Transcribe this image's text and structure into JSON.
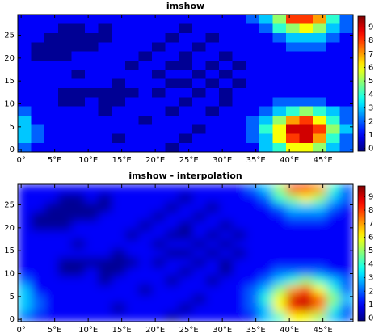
{
  "chart_data": [
    {
      "type": "heatmap",
      "title": "imshow",
      "interpolation": "nearest",
      "xlim": [
        -0.5,
        49.5
      ],
      "ylim": [
        -0.5,
        29.5
      ],
      "xticks": [
        {
          "value": 0,
          "label": "0°"
        },
        {
          "value": 5,
          "label": "5°E"
        },
        {
          "value": 10,
          "label": "10°E"
        },
        {
          "value": 15,
          "label": "15°E"
        },
        {
          "value": 20,
          "label": "20°E"
        },
        {
          "value": 25,
          "label": "25°E"
        },
        {
          "value": 30,
          "label": "30°E"
        },
        {
          "value": 35,
          "label": "35°E"
        },
        {
          "value": 40,
          "label": "40°E"
        },
        {
          "value": 45,
          "label": "45°E"
        }
      ],
      "yticks": [
        0,
        5,
        10,
        15,
        20,
        25
      ],
      "colormap": "jet",
      "clim": [
        -0.2,
        9.8
      ],
      "cticks": [
        0,
        1,
        2,
        3,
        4,
        5,
        6,
        7,
        8,
        9
      ],
      "z": [
        [
          2,
          1,
          1,
          1,
          1,
          1,
          1,
          1,
          1,
          1,
          1,
          0,
          1,
          1,
          1,
          1,
          1,
          1,
          3,
          4,
          6,
          6,
          5,
          3,
          2
        ],
        [
          3,
          2,
          1,
          1,
          1,
          1,
          1,
          0,
          1,
          1,
          1,
          1,
          0,
          1,
          1,
          1,
          1,
          2,
          3,
          6,
          8,
          9,
          7,
          4,
          2
        ],
        [
          3,
          2,
          1,
          1,
          1,
          1,
          1,
          1,
          1,
          1,
          1,
          1,
          1,
          0,
          1,
          1,
          1,
          2,
          4,
          6,
          9,
          9,
          8,
          5,
          3
        ],
        [
          3,
          1,
          1,
          1,
          1,
          1,
          1,
          1,
          1,
          0,
          1,
          1,
          1,
          1,
          1,
          1,
          1,
          2,
          3,
          5,
          7,
          8,
          6,
          4,
          2
        ],
        [
          2,
          1,
          1,
          1,
          1,
          1,
          0,
          1,
          1,
          1,
          1,
          0,
          1,
          1,
          0,
          1,
          1,
          1,
          2,
          3,
          4,
          5,
          4,
          3,
          2
        ],
        [
          1,
          1,
          1,
          0,
          0,
          1,
          0,
          0,
          1,
          1,
          1,
          1,
          0,
          1,
          1,
          0,
          1,
          1,
          1,
          2,
          2,
          2,
          2,
          1,
          1
        ],
        [
          1,
          1,
          1,
          0,
          0,
          0,
          0,
          0,
          0,
          1,
          0,
          1,
          1,
          0,
          1,
          0,
          1,
          1,
          1,
          1,
          1,
          1,
          1,
          1,
          1
        ],
        [
          1,
          1,
          1,
          1,
          1,
          1,
          1,
          0,
          1,
          1,
          1,
          0,
          0,
          1,
          0,
          1,
          0,
          1,
          1,
          1,
          1,
          1,
          1,
          1,
          1
        ],
        [
          1,
          1,
          1,
          1,
          0,
          1,
          1,
          1,
          1,
          1,
          0,
          1,
          1,
          0,
          1,
          0,
          1,
          1,
          1,
          1,
          1,
          1,
          1,
          1,
          1
        ],
        [
          1,
          1,
          1,
          1,
          1,
          1,
          1,
          1,
          0,
          1,
          1,
          0,
          0,
          1,
          0,
          1,
          0,
          1,
          1,
          1,
          1,
          1,
          1,
          1,
          1
        ],
        [
          1,
          0,
          0,
          0,
          1,
          1,
          1,
          1,
          1,
          0,
          1,
          1,
          0,
          1,
          1,
          0,
          1,
          1,
          1,
          1,
          1,
          1,
          1,
          1,
          1
        ],
        [
          1,
          0,
          0,
          0,
          0,
          0,
          1,
          1,
          1,
          1,
          0,
          1,
          1,
          0,
          1,
          1,
          1,
          1,
          1,
          1,
          2,
          2,
          2,
          1,
          1
        ],
        [
          1,
          1,
          0,
          0,
          0,
          0,
          0,
          1,
          1,
          1,
          1,
          0,
          1,
          1,
          0,
          1,
          1,
          1,
          1,
          2,
          3,
          3,
          3,
          2,
          1
        ],
        [
          1,
          1,
          1,
          0,
          0,
          1,
          0,
          1,
          1,
          1,
          1,
          1,
          0,
          1,
          1,
          1,
          1,
          1,
          2,
          4,
          5,
          6,
          5,
          3,
          2
        ],
        [
          1,
          1,
          1,
          1,
          1,
          1,
          1,
          1,
          1,
          1,
          1,
          1,
          1,
          1,
          1,
          1,
          1,
          2,
          3,
          5,
          8,
          8,
          7,
          4,
          2
        ]
      ]
    },
    {
      "type": "heatmap",
      "title": "imshow - interpolation",
      "interpolation": "bilinear",
      "xlim": [
        -0.5,
        49.5
      ],
      "ylim": [
        -0.5,
        29.5
      ],
      "xticks": [
        {
          "value": 0,
          "label": "0°"
        },
        {
          "value": 5,
          "label": "5°E"
        },
        {
          "value": 10,
          "label": "10°E"
        },
        {
          "value": 15,
          "label": "15°E"
        },
        {
          "value": 20,
          "label": "20°E"
        },
        {
          "value": 25,
          "label": "25°E"
        },
        {
          "value": 30,
          "label": "30°E"
        },
        {
          "value": 35,
          "label": "35°E"
        },
        {
          "value": 40,
          "label": "40°E"
        },
        {
          "value": 45,
          "label": "45°E"
        }
      ],
      "yticks": [
        0,
        5,
        10,
        15,
        20,
        25
      ],
      "colormap": "jet",
      "clim": [
        -0.2,
        9.8
      ],
      "cticks": [
        0,
        1,
        2,
        3,
        4,
        5,
        6,
        7,
        8,
        9
      ],
      "z": [
        [
          2,
          1,
          1,
          1,
          1,
          1,
          1,
          1,
          1,
          1,
          1,
          0,
          1,
          1,
          1,
          1,
          1,
          1,
          3,
          4,
          6,
          6,
          5,
          3,
          2
        ],
        [
          3,
          2,
          1,
          1,
          1,
          1,
          1,
          0,
          1,
          1,
          1,
          1,
          0,
          1,
          1,
          1,
          1,
          2,
          3,
          6,
          8,
          9,
          7,
          4,
          2
        ],
        [
          3,
          2,
          1,
          1,
          1,
          1,
          1,
          1,
          1,
          1,
          1,
          1,
          1,
          0,
          1,
          1,
          1,
          2,
          4,
          6,
          9,
          9,
          8,
          5,
          3
        ],
        [
          3,
          1,
          1,
          1,
          1,
          1,
          1,
          1,
          1,
          0,
          1,
          1,
          1,
          1,
          1,
          1,
          1,
          2,
          3,
          5,
          7,
          8,
          6,
          4,
          2
        ],
        [
          2,
          1,
          1,
          1,
          1,
          1,
          0,
          1,
          1,
          1,
          1,
          0,
          1,
          1,
          0,
          1,
          1,
          1,
          2,
          3,
          4,
          5,
          4,
          3,
          2
        ],
        [
          1,
          1,
          1,
          0,
          0,
          1,
          0,
          0,
          1,
          1,
          1,
          1,
          0,
          1,
          1,
          0,
          1,
          1,
          1,
          2,
          2,
          2,
          2,
          1,
          1
        ],
        [
          1,
          1,
          1,
          0,
          0,
          0,
          0,
          0,
          0,
          1,
          0,
          1,
          1,
          0,
          1,
          0,
          1,
          1,
          1,
          1,
          1,
          1,
          1,
          1,
          1
        ],
        [
          1,
          1,
          1,
          1,
          1,
          1,
          1,
          0,
          1,
          1,
          1,
          0,
          0,
          1,
          0,
          1,
          0,
          1,
          1,
          1,
          1,
          1,
          1,
          1,
          1
        ],
        [
          1,
          1,
          1,
          1,
          0,
          1,
          1,
          1,
          1,
          1,
          0,
          1,
          1,
          0,
          1,
          0,
          1,
          1,
          1,
          1,
          1,
          1,
          1,
          1,
          1
        ],
        [
          1,
          1,
          1,
          1,
          1,
          1,
          1,
          1,
          0,
          1,
          1,
          0,
          0,
          1,
          0,
          1,
          0,
          1,
          1,
          1,
          1,
          1,
          1,
          1,
          1
        ],
        [
          1,
          0,
          0,
          0,
          1,
          1,
          1,
          1,
          1,
          0,
          1,
          1,
          0,
          1,
          1,
          0,
          1,
          1,
          1,
          1,
          1,
          1,
          1,
          1,
          1
        ],
        [
          1,
          0,
          0,
          0,
          0,
          0,
          1,
          1,
          1,
          1,
          0,
          1,
          1,
          0,
          1,
          1,
          1,
          1,
          1,
          1,
          2,
          2,
          2,
          1,
          1
        ],
        [
          1,
          1,
          0,
          0,
          0,
          0,
          0,
          1,
          1,
          1,
          1,
          0,
          1,
          1,
          0,
          1,
          1,
          1,
          1,
          2,
          3,
          3,
          3,
          2,
          1
        ],
        [
          1,
          1,
          1,
          0,
          0,
          1,
          0,
          1,
          1,
          1,
          1,
          1,
          0,
          1,
          1,
          1,
          1,
          1,
          2,
          4,
          5,
          6,
          5,
          3,
          2
        ],
        [
          1,
          1,
          1,
          1,
          1,
          1,
          1,
          1,
          1,
          1,
          1,
          1,
          1,
          1,
          1,
          1,
          1,
          2,
          3,
          5,
          8,
          8,
          7,
          4,
          2
        ]
      ]
    }
  ]
}
